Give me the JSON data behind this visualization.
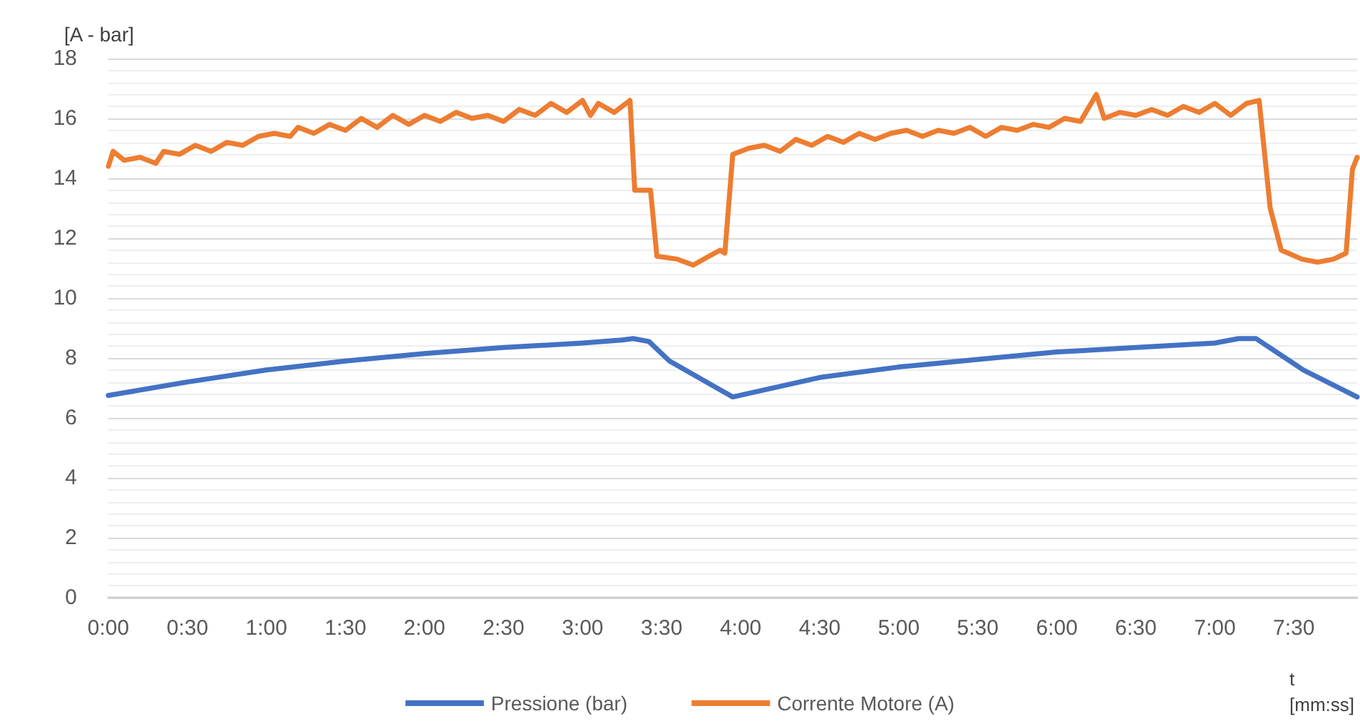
{
  "chart_data": {
    "type": "line",
    "ylabel": "[A - bar]",
    "xlabel": "t [mm:ss]",
    "xlim": [
      0,
      7.9
    ],
    "xticks": [
      {
        "value": 0,
        "label": "0:00"
      },
      {
        "value": 0.5,
        "label": "0:30"
      },
      {
        "value": 1,
        "label": "1:00"
      },
      {
        "value": 1.5,
        "label": "1:30"
      },
      {
        "value": 2,
        "label": "2:00"
      },
      {
        "value": 2.5,
        "label": "2:30"
      },
      {
        "value": 3,
        "label": "3:00"
      },
      {
        "value": 3.5,
        "label": "3:30"
      },
      {
        "value": 4,
        "label": "4:00"
      },
      {
        "value": 4.5,
        "label": "4:30"
      },
      {
        "value": 5,
        "label": "5:00"
      },
      {
        "value": 5.5,
        "label": "5:30"
      },
      {
        "value": 6,
        "label": "6:00"
      },
      {
        "value": 6.5,
        "label": "6:30"
      },
      {
        "value": 7,
        "label": "7:00"
      },
      {
        "value": 7.5,
        "label": "7:30"
      }
    ],
    "ylim": [
      0,
      18
    ],
    "yticks": [
      0,
      2,
      4,
      6,
      8,
      10,
      12,
      14,
      16,
      18
    ],
    "grid": "y",
    "legend": "bottom",
    "line_style": "solid",
    "series": [
      {
        "name": "Pressione (bar)",
        "color": "#4472c4",
        "x": [
          0,
          0.5,
          1,
          1.5,
          2,
          2.5,
          3,
          3.25,
          3.32,
          3.42,
          3.55,
          3.95,
          4.5,
          5,
          5.5,
          6,
          6.5,
          7,
          7.15,
          7.26,
          7.56,
          7.9
        ],
        "values": [
          6.75,
          7.2,
          7.6,
          7.9,
          8.15,
          8.35,
          8.5,
          8.6,
          8.65,
          8.55,
          7.9,
          6.7,
          7.35,
          7.7,
          7.95,
          8.2,
          8.35,
          8.5,
          8.65,
          8.65,
          7.6,
          6.7
        ]
      },
      {
        "name": "Corrente Motore (A)",
        "color": "#ed7d31",
        "x": [
          0,
          0.03,
          0.1,
          0.2,
          0.3,
          0.35,
          0.45,
          0.55,
          0.65,
          0.75,
          0.85,
          0.95,
          1.05,
          1.15,
          1.2,
          1.3,
          1.4,
          1.5,
          1.6,
          1.7,
          1.8,
          1.9,
          2,
          2.1,
          2.2,
          2.3,
          2.4,
          2.5,
          2.6,
          2.7,
          2.8,
          2.9,
          3,
          3.05,
          3.1,
          3.2,
          3.3,
          3.33,
          3.43,
          3.47,
          3.6,
          3.7,
          3.8,
          3.87,
          3.9,
          3.95,
          4.05,
          4.15,
          4.25,
          4.35,
          4.45,
          4.55,
          4.65,
          4.75,
          4.85,
          4.95,
          5.05,
          5.15,
          5.25,
          5.35,
          5.45,
          5.55,
          5.65,
          5.75,
          5.85,
          5.95,
          6.05,
          6.15,
          6.25,
          6.3,
          6.4,
          6.5,
          6.6,
          6.7,
          6.8,
          6.9,
          7,
          7.1,
          7.2,
          7.28,
          7.35,
          7.42,
          7.55,
          7.65,
          7.75,
          7.83,
          7.87,
          7.9
        ],
        "values": [
          14.4,
          14.9,
          14.6,
          14.7,
          14.5,
          14.9,
          14.8,
          15.1,
          14.9,
          15.2,
          15.1,
          15.4,
          15.5,
          15.4,
          15.7,
          15.5,
          15.8,
          15.6,
          16,
          15.7,
          16.1,
          15.8,
          16.1,
          15.9,
          16.2,
          16,
          16.1,
          15.9,
          16.3,
          16.1,
          16.5,
          16.2,
          16.6,
          16.1,
          16.5,
          16.2,
          16.6,
          13.6,
          13.6,
          11.4,
          11.3,
          11.1,
          11.4,
          11.6,
          11.5,
          14.8,
          15,
          15.1,
          14.9,
          15.3,
          15.1,
          15.4,
          15.2,
          15.5,
          15.3,
          15.5,
          15.6,
          15.4,
          15.6,
          15.5,
          15.7,
          15.4,
          15.7,
          15.6,
          15.8,
          15.7,
          16,
          15.9,
          16.8,
          16,
          16.2,
          16.1,
          16.3,
          16.1,
          16.4,
          16.2,
          16.5,
          16.1,
          16.5,
          16.6,
          13,
          11.6,
          11.3,
          11.2,
          11.3,
          11.5,
          14.3,
          14.7
        ]
      }
    ]
  }
}
